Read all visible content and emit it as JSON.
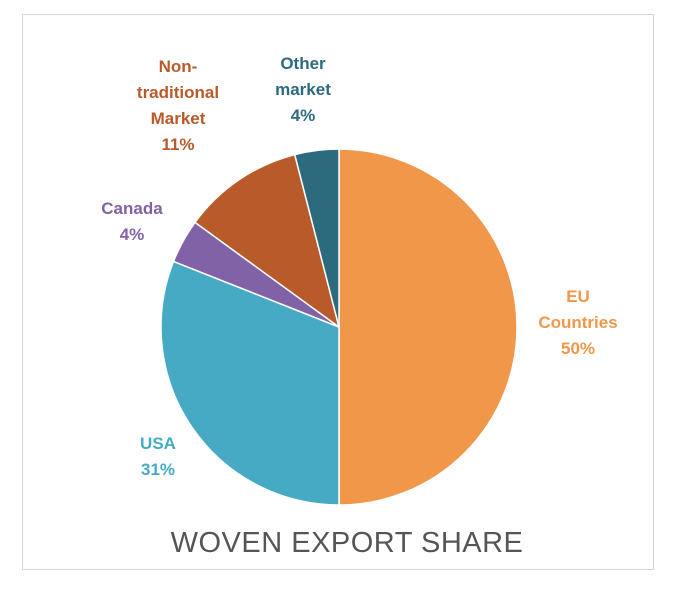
{
  "chart_data": {
    "type": "pie",
    "title": "WOVEN EXPORT SHARE",
    "slices": [
      {
        "label": [
          "EU",
          "Countries"
        ],
        "value": 50,
        "pct_label": "50%",
        "color": "#F0974A"
      },
      {
        "label": [
          "USA"
        ],
        "value": 31,
        "pct_label": "31%",
        "color": "#46AAC4"
      },
      {
        "label": [
          "Canada"
        ],
        "value": 4,
        "pct_label": "4%",
        "color": "#8162A6"
      },
      {
        "label": [
          "Non-",
          "traditional",
          "Market"
        ],
        "value": 11,
        "pct_label": "11%",
        "color": "#B95A2A"
      },
      {
        "label": [
          "Other",
          "market"
        ],
        "value": 4,
        "pct_label": "4%",
        "color": "#2C6B7D"
      }
    ],
    "label_colors": [
      "#F0974A",
      "#46AAC4",
      "#8162A6",
      "#B95A2A",
      "#2C6B7D"
    ],
    "legend": "none"
  }
}
